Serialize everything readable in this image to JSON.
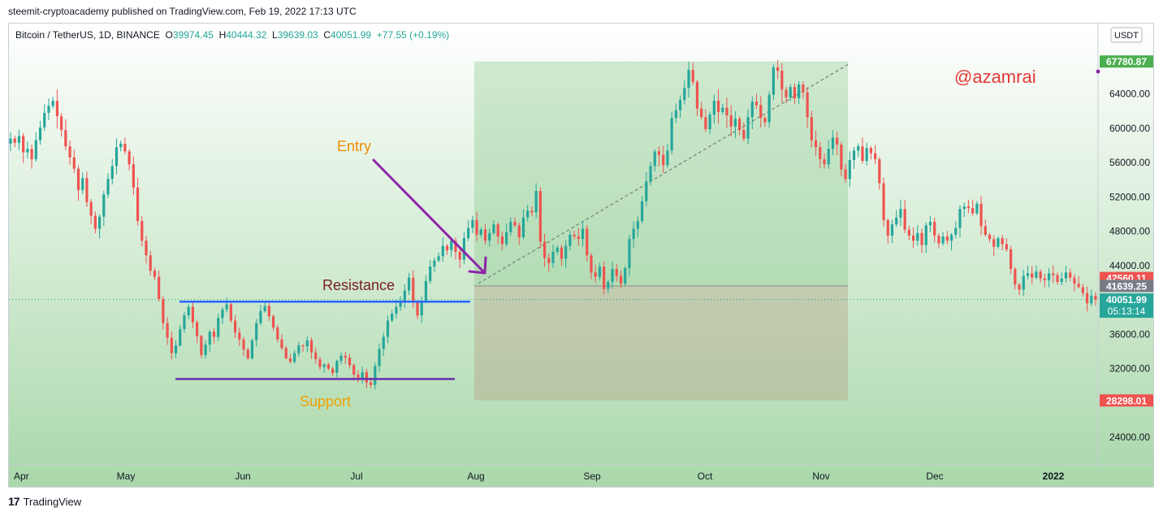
{
  "publish_line": "steemit-cryptoacademy published on TradingView.com, Feb 19, 2022 17:13 UTC",
  "footer": {
    "brand": "TradingView",
    "logo": "17"
  },
  "legend": {
    "symbol": "Bitcoin / TetherUS, 1D, BINANCE",
    "open_label": "O",
    "open": "39974.45",
    "high_label": "H",
    "high": "40444.32",
    "low_label": "L",
    "low": "39639.03",
    "close_label": "C",
    "close": "40051.99",
    "change": "+77.55 (+0.19%)"
  },
  "currency_button": "USDT",
  "colors": {
    "up": "#26a69a",
    "down": "#ef5350",
    "background_green": "#c8e6c9",
    "resistance_line": "#2962ff",
    "support_line": "#6a2fb0",
    "arrow": "#8e24aa",
    "entry_text": "#f08c00",
    "support_text": "#f0a000",
    "resistance_text": "#7a1f1f",
    "watermark": "#e53935"
  },
  "annotations": {
    "entry": "Entry",
    "resistance": "Resistance",
    "support": "Support",
    "watermark": "@azamrai"
  },
  "price_badges": [
    {
      "value": "67780.87",
      "style": "green"
    },
    {
      "value": "42560.11",
      "style": "red"
    },
    {
      "value": "41639.25",
      "style": "gray"
    },
    {
      "value": "40051.99",
      "sub": "05:13:14",
      "style": "teal"
    },
    {
      "value": "28298.01",
      "style": "red"
    }
  ],
  "chart_data": {
    "type": "candlestick",
    "x_ticks": [
      "Apr",
      "May",
      "Jun",
      "Jul",
      "Aug",
      "Sep",
      "Oct",
      "Nov",
      "Dec",
      "2022"
    ],
    "y_ticks": [
      "24000.00",
      "28000.00",
      "32000.00",
      "36000.00",
      "40000.00",
      "44000.00",
      "48000.00",
      "52000.00",
      "56000.00",
      "60000.00",
      "64000.00"
    ],
    "ylim": [
      20800,
      72200
    ],
    "resistance_level": 39800,
    "support_level": 30800,
    "position_box": {
      "entry": 41639.25,
      "target": 67780.87,
      "stop": 28298.01
    },
    "series_close": [
      58800,
      58300,
      59100,
      57200,
      57600,
      56400,
      58600,
      60100,
      61800,
      62600,
      63200,
      61400,
      59800,
      57900,
      56600,
      55300,
      52800,
      54200,
      51400,
      49800,
      48300,
      49700,
      52300,
      54100,
      55600,
      57800,
      58200,
      57300,
      55800,
      53100,
      49200,
      46900,
      45200,
      43400,
      42700,
      40100,
      37300,
      35600,
      33800,
      34700,
      36600,
      38200,
      39200,
      37400,
      35800,
      33600,
      34800,
      36300,
      35700,
      37900,
      38900,
      39500,
      37600,
      36200,
      35400,
      34200,
      33200,
      35300,
      37300,
      38700,
      39300,
      38100,
      36800,
      35400,
      34400,
      33200,
      32800,
      33800,
      34700,
      34600,
      35300,
      33900,
      33100,
      32200,
      32500,
      32000,
      31500,
      32900,
      33500,
      33300,
      32400,
      31300,
      30800,
      31600,
      30400,
      30100,
      32300,
      34300,
      35700,
      37600,
      38400,
      39200,
      39800,
      41100,
      42600,
      39800,
      38200,
      39900,
      42200,
      43900,
      44600,
      45100,
      46300,
      45800,
      46900,
      45600,
      44700,
      47200,
      48400,
      49300,
      47600,
      48200,
      46900,
      47800,
      48800,
      47400,
      46500,
      47900,
      49100,
      48700,
      47300,
      49600,
      50400,
      50200,
      52700,
      46800,
      44900,
      44300,
      45600,
      46100,
      44800,
      46300,
      47600,
      47400,
      47100,
      48300,
      45200,
      43200,
      42700,
      43900,
      41300,
      42100,
      43600,
      42800,
      41900,
      43700,
      47100,
      48300,
      49200,
      51500,
      53800,
      55600,
      57300,
      56900,
      55700,
      57400,
      61200,
      62100,
      63300,
      64700,
      66800,
      65400,
      62300,
      61300,
      59900,
      61600,
      63200,
      61900,
      62400,
      61500,
      60200,
      61100,
      59800,
      58800,
      61300,
      63100,
      62700,
      61200,
      60700,
      63900,
      67100,
      66700,
      64500,
      63600,
      64800,
      63500,
      65100,
      64200,
      61300,
      58600,
      57800,
      56400,
      55800,
      57600,
      58900,
      58100,
      55200,
      54100,
      56300,
      57400,
      57900,
      56200,
      57700,
      57100,
      56400,
      53600,
      49300,
      47500,
      48800,
      49600,
      50600,
      48200,
      47500,
      46900,
      47800,
      46400,
      48700,
      49100,
      47500,
      46600,
      47400,
      46900,
      47600,
      48400,
      50600,
      50900,
      50700,
      50100,
      51200,
      48600,
      47600,
      47100,
      46200,
      47200,
      46500,
      45900,
      43600,
      41800,
      41200,
      42800,
      43100,
      42600,
      43300,
      42500,
      42300,
      43100,
      42900,
      42100,
      42500,
      43200,
      42600,
      41900,
      41500,
      40800,
      39600,
      40500,
      40051.99
    ]
  }
}
